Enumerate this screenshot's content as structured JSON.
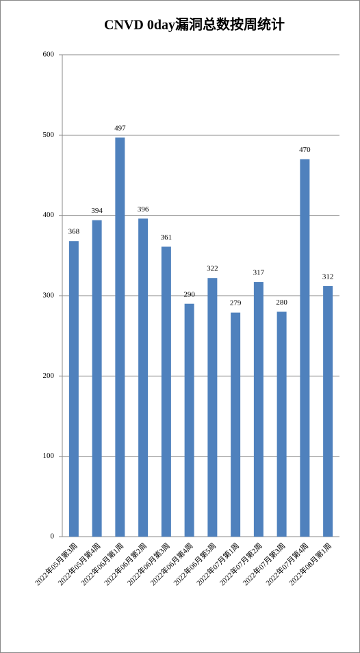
{
  "chart_data": {
    "type": "bar",
    "title": "CNVD 0day漏洞总数按周统计",
    "categories": [
      "2022年05月第3周",
      "2022年05月第4周",
      "2022年06月第1周",
      "2022年06月第2周",
      "2022年06月第3周",
      "2022年06月第4周",
      "2022年06月第5周",
      "2022年07月第1周",
      "2022年07月第2周",
      "2022年07月第3周",
      "2022年07月第4周",
      "2022年08月第1周"
    ],
    "values": [
      368,
      394,
      497,
      396,
      361,
      290,
      322,
      279,
      317,
      280,
      470,
      312
    ],
    "color": "#4f81bd",
    "ylim": [
      0,
      600
    ],
    "yticks": [
      0,
      100,
      200,
      300,
      400,
      500,
      600
    ],
    "grid": true
  }
}
